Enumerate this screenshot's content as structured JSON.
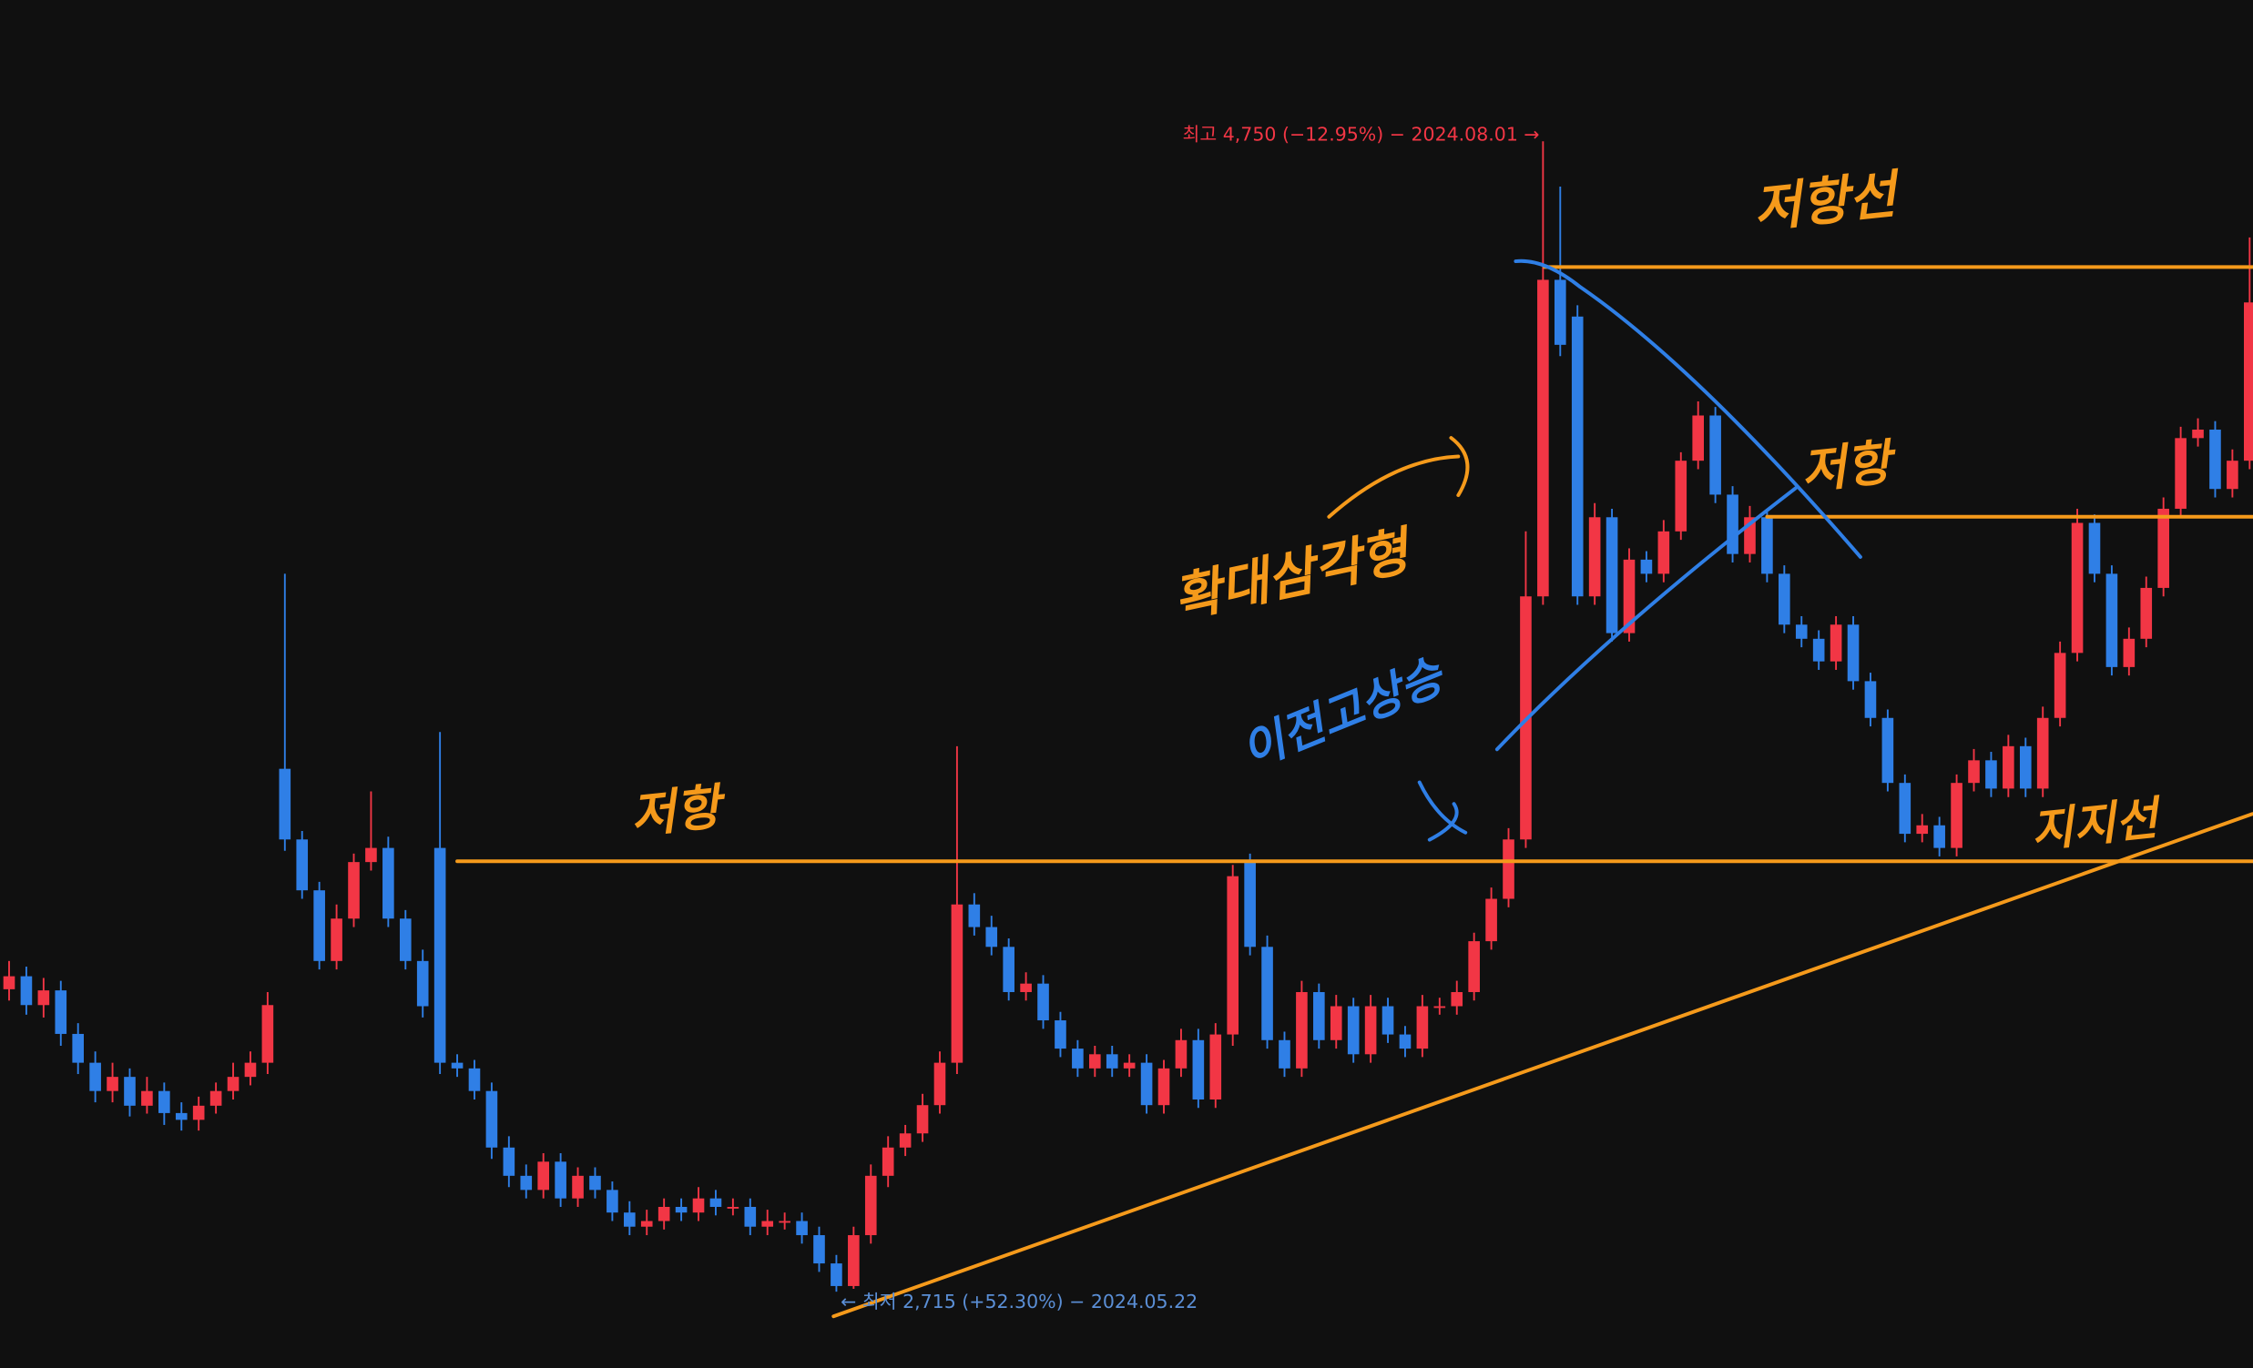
{
  "chart_data": {
    "type": "candlestick",
    "ylim": [
      2580,
      5000
    ],
    "up_color": "#f23645",
    "down_color": "#2f7fe6",
    "open": [
      3250,
      3273,
      3222,
      3248,
      3171,
      3120,
      3070,
      3095,
      3044,
      3070,
      3031,
      3019,
      3044,
      3070,
      3095,
      3120,
      3640,
      3515,
      3425,
      3300,
      3375,
      3475,
      3500,
      3375,
      3300,
      3500,
      3120,
      3110,
      3070,
      2970,
      2920,
      2895,
      2945,
      2880,
      2920,
      2895,
      2855,
      2830,
      2840,
      2865,
      2855,
      2880,
      2865,
      2865,
      2830,
      2840,
      2840,
      2815,
      2765,
      2725,
      2815,
      2920,
      2970,
      2995,
      3045,
      3120,
      3400,
      3360,
      3325,
      3245,
      3260,
      3195,
      3145,
      3110,
      3135,
      3110,
      3120,
      3045,
      3110,
      3160,
      3055,
      3170,
      3475,
      3325,
      3160,
      3110,
      3245,
      3160,
      3220,
      3135,
      3220,
      3170,
      3145,
      3220,
      3220,
      3245,
      3335,
      3410,
      3515,
      3945,
      4505,
      4440,
      3945,
      4085,
      3880,
      4010,
      3985,
      4060,
      4185,
      4265,
      4125,
      4020,
      4085,
      3985,
      3895,
      3870,
      3830,
      3895,
      3795,
      3730,
      3615,
      3525,
      3540,
      3500,
      3615,
      3655,
      3605,
      3680,
      3605,
      3730,
      3845,
      4075,
      3985,
      3820,
      3870,
      3960,
      4100,
      4225,
      4240,
      4135,
      4185
    ],
    "high": [
      3300,
      3290,
      3270,
      3265,
      3190,
      3140,
      3120,
      3110,
      3095,
      3085,
      3050,
      3060,
      3085,
      3120,
      3140,
      3245,
      3985,
      3530,
      3440,
      3400,
      3490,
      3600,
      3520,
      3390,
      3320,
      3705,
      3135,
      3125,
      3085,
      2990,
      2940,
      2960,
      2960,
      2935,
      2935,
      2910,
      2875,
      2860,
      2880,
      2880,
      2900,
      2895,
      2880,
      2880,
      2860,
      2855,
      2855,
      2830,
      2780,
      2830,
      2940,
      2990,
      3010,
      3065,
      3140,
      3680,
      3420,
      3380,
      3340,
      3280,
      3275,
      3210,
      3160,
      3150,
      3150,
      3135,
      3135,
      3125,
      3180,
      3180,
      3190,
      3470,
      3490,
      3345,
      3175,
      3265,
      3260,
      3240,
      3235,
      3240,
      3235,
      3185,
      3240,
      3235,
      3265,
      3350,
      3430,
      3535,
      4060,
      4750,
      4670,
      4460,
      4110,
      4100,
      4030,
      4025,
      4080,
      4200,
      4290,
      4280,
      4140,
      4105,
      4100,
      4000,
      3910,
      3885,
      3910,
      3910,
      3810,
      3745,
      3630,
      3560,
      3555,
      3630,
      3675,
      3670,
      3700,
      3695,
      3750,
      3865,
      4100,
      4090,
      4000,
      3890,
      3980,
      4120,
      4245,
      4260,
      4255,
      4205,
      4580
    ],
    "low": [
      3230,
      3205,
      3200,
      3150,
      3100,
      3050,
      3050,
      3025,
      3030,
      3010,
      3000,
      3000,
      3030,
      3055,
      3080,
      3100,
      3495,
      3410,
      3285,
      3285,
      3360,
      3460,
      3360,
      3285,
      3200,
      3100,
      3095,
      3055,
      2950,
      2900,
      2880,
      2880,
      2865,
      2865,
      2880,
      2840,
      2815,
      2815,
      2825,
      2840,
      2840,
      2850,
      2850,
      2815,
      2815,
      2825,
      2800,
      2750,
      2715,
      2720,
      2800,
      2900,
      2955,
      2980,
      3030,
      3100,
      3345,
      3310,
      3230,
      3230,
      3180,
      3130,
      3095,
      3095,
      3095,
      3095,
      3030,
      3030,
      3095,
      3040,
      3040,
      3150,
      3310,
      3145,
      3095,
      3095,
      3145,
      3145,
      3120,
      3120,
      3155,
      3130,
      3130,
      3205,
      3205,
      3230,
      3320,
      3395,
      3500,
      3930,
      4370,
      3930,
      3930,
      3865,
      3865,
      3970,
      3970,
      4045,
      4170,
      4110,
      4005,
      4005,
      3970,
      3880,
      3855,
      3815,
      3815,
      3780,
      3715,
      3600,
      3510,
      3510,
      3485,
      3485,
      3600,
      3590,
      3590,
      3590,
      3590,
      3715,
      3830,
      3970,
      3805,
      3805,
      3855,
      3945,
      4085,
      4210,
      4120,
      4120,
      4170
    ],
    "close": [
      3273,
      3222,
      3248,
      3171,
      3120,
      3070,
      3095,
      3044,
      3070,
      3031,
      3019,
      3044,
      3070,
      3095,
      3120,
      3222,
      3515,
      3425,
      3300,
      3375,
      3475,
      3500,
      3375,
      3300,
      3220,
      3120,
      3110,
      3070,
      2970,
      2920,
      2895,
      2945,
      2880,
      2920,
      2895,
      2855,
      2830,
      2840,
      2865,
      2855,
      2880,
      2865,
      2865,
      2830,
      2840,
      2840,
      2815,
      2765,
      2725,
      2815,
      2920,
      2970,
      2995,
      3045,
      3120,
      3400,
      3360,
      3325,
      3245,
      3260,
      3195,
      3145,
      3110,
      3135,
      3110,
      3120,
      3045,
      3110,
      3160,
      3055,
      3170,
      3450,
      3325,
      3160,
      3110,
      3245,
      3160,
      3220,
      3135,
      3220,
      3170,
      3145,
      3220,
      3220,
      3245,
      3335,
      3410,
      3515,
      3945,
      4505,
      4390,
      3945,
      4085,
      3880,
      4010,
      3985,
      4060,
      4185,
      4265,
      4125,
      4020,
      4085,
      3985,
      3895,
      3870,
      3830,
      3895,
      3795,
      3730,
      3615,
      3525,
      3540,
      3500,
      3615,
      3655,
      3605,
      3680,
      3605,
      3730,
      3845,
      4075,
      3985,
      3820,
      3870,
      3960,
      4100,
      4225,
      4240,
      4135,
      4185,
      4465
    ],
    "annotations": {
      "high_label": "최고 4,750 (−12.95%) − 2024.08.01 →",
      "low_label": "← 최저 2,715 (+52.30%) − 2024.05.22",
      "resistance_line_top": "저항선",
      "resistance_mid": "저항",
      "resistance_left": "저항",
      "pattern": "확대삼각형",
      "prev_high_break": "이전고상승",
      "support_line": "지지선"
    }
  }
}
